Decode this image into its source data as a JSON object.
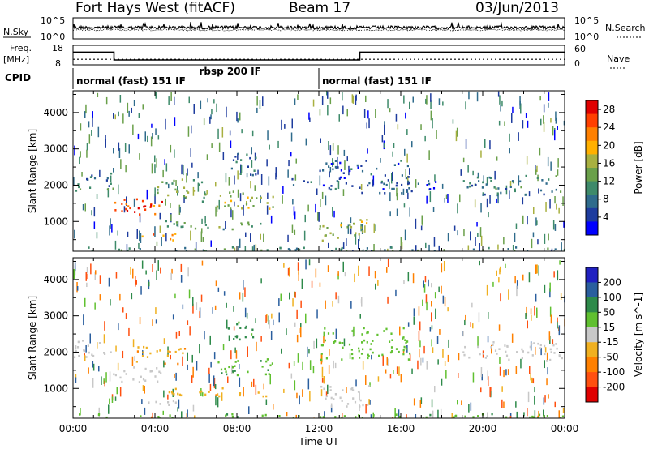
{
  "header": {
    "title": "Fort Hays West (fitACF)",
    "beam": "Beam 17",
    "date": "03/Jun/2013"
  },
  "top_strip": {
    "nsky_label": "N.Sky",
    "nsky_ticks": [
      "10^5",
      "10^0"
    ],
    "nsearch_label": "N.Search",
    "nsearch_ticks": [
      "10^5",
      "10^0"
    ],
    "freq_label_1": "Freq.",
    "freq_label_2": "[MHz]",
    "freq_ticks": [
      "18",
      "8"
    ],
    "nave_label": "Nave",
    "nave_ticks": [
      "60",
      "0"
    ],
    "cpid_label": "CPID",
    "cpid_segments": [
      {
        "label": "normal (fast) 151 IF",
        "start_hour": 0,
        "end_hour": 6
      },
      {
        "label": "rbsp 200 IF",
        "start_hour": 6,
        "end_hour": 12
      },
      {
        "label": "normal (fast) 151 IF",
        "start_hour": 12,
        "end_hour": 24
      }
    ]
  },
  "chart_data": [
    {
      "type": "line",
      "panel": "frequency and nave",
      "frequency_mhz": {
        "ylim": [
          8,
          18
        ],
        "x_hours": [
          0,
          2,
          2,
          14,
          14,
          24
        ],
        "y": [
          14.5,
          14.5,
          10.5,
          10.5,
          14.5,
          14.5
        ]
      },
      "nave": {
        "ylim": [
          0,
          60
        ],
        "x_hours": [
          0,
          24
        ],
        "y": [
          17,
          17
        ]
      }
    },
    {
      "type": "heatmap",
      "title": "Power",
      "xlabel": "Time UT",
      "ylabel": "Slant Range [km]",
      "xlim": [
        0,
        24
      ],
      "ylim": [
        180,
        4600
      ],
      "x_ticks": [
        "00:00",
        "04:00",
        "08:00",
        "12:00",
        "16:00",
        "20:00",
        "00:00"
      ],
      "y_ticks": [
        1000,
        2000,
        3000,
        4000
      ],
      "colorbar": {
        "label": "Power [dB]",
        "ticks": [
          4,
          8,
          12,
          16,
          20,
          24,
          28
        ],
        "range": [
          0,
          30
        ],
        "colors": [
          "#0000ff",
          "#1e3c9e",
          "#2f6b8c",
          "#3e8a6a",
          "#6aa04a",
          "#a8b040",
          "#ffb000",
          "#ff8000",
          "#ff4000",
          "#e00000"
        ]
      },
      "regions": [
        {
          "t0": 0,
          "t1": 2,
          "r0": 1850,
          "r1": 2350,
          "v": 9
        },
        {
          "t0": 1.8,
          "t1": 4.5,
          "r0": 1200,
          "r1": 1650,
          "v": 24
        },
        {
          "t0": 2.5,
          "t1": 4.0,
          "r0": 1350,
          "r1": 1550,
          "v": 28
        },
        {
          "t0": 4.0,
          "t1": 6.5,
          "r0": 1550,
          "r1": 2200,
          "v": 14
        },
        {
          "t0": 3.0,
          "t1": 5.0,
          "r0": 500,
          "r1": 700,
          "v": 22
        },
        {
          "t0": 4.5,
          "t1": 9.5,
          "r0": 800,
          "r1": 1050,
          "v": 12
        },
        {
          "t0": 7.0,
          "t1": 10.0,
          "r0": 1350,
          "r1": 1850,
          "v": 17
        },
        {
          "t0": 7.5,
          "t1": 9.0,
          "r0": 2300,
          "r1": 2900,
          "v": 7
        },
        {
          "t0": 10.5,
          "t1": 11.6,
          "r0": 1900,
          "r1": 2200,
          "v": 6
        },
        {
          "t0": 12.0,
          "t1": 14.5,
          "r0": 500,
          "r1": 1100,
          "v": 16
        },
        {
          "t0": 12.0,
          "t1": 16.5,
          "r0": 1800,
          "r1": 2700,
          "v": 6
        },
        {
          "t0": 16.5,
          "t1": 18.5,
          "r0": 1900,
          "r1": 2150,
          "v": 5
        },
        {
          "t0": 19.0,
          "t1": 24,
          "r0": 1750,
          "r1": 2300,
          "v": 9
        },
        {
          "t0": 0,
          "t1": 24,
          "r0": 180,
          "r1": 320,
          "v": 10
        }
      ]
    },
    {
      "type": "heatmap",
      "title": "Velocity",
      "xlabel": "Time UT",
      "ylabel": "Slant Range [km]",
      "xlim": [
        0,
        24
      ],
      "ylim": [
        180,
        4600
      ],
      "x_ticks": [
        "00:00",
        "04:00",
        "08:00",
        "12:00",
        "16:00",
        "20:00",
        "00:00"
      ],
      "y_ticks": [
        1000,
        2000,
        3000,
        4000
      ],
      "colorbar": {
        "label": "Velocity [m s^-1]",
        "ticks": [
          200,
          100,
          50,
          15,
          -15,
          -50,
          -100,
          -200
        ],
        "colors": [
          "#2020c0",
          "#2a5e9e",
          "#2e8a4a",
          "#60c030",
          "#c8c8c8",
          "#f0b020",
          "#ff8000",
          "#ff5010",
          "#e00000"
        ]
      },
      "regions": [
        {
          "t0": 0,
          "t1": 2,
          "r0": 1850,
          "r1": 2350,
          "v": 0
        },
        {
          "t0": 1.8,
          "t1": 4.5,
          "r0": 1200,
          "r1": 1650,
          "v": 0
        },
        {
          "t0": 3.0,
          "t1": 5.5,
          "r0": 1700,
          "r1": 2200,
          "v": -40
        },
        {
          "t0": 3.0,
          "t1": 5.0,
          "r0": 500,
          "r1": 700,
          "v": 0
        },
        {
          "t0": 4.5,
          "t1": 9.5,
          "r0": 800,
          "r1": 1050,
          "v": -40
        },
        {
          "t0": 7.0,
          "t1": 10.0,
          "r0": 1350,
          "r1": 1850,
          "v": 45
        },
        {
          "t0": 7.5,
          "t1": 9.0,
          "r0": 2300,
          "r1": 2900,
          "v": 60
        },
        {
          "t0": 12.0,
          "t1": 14.5,
          "r0": 500,
          "r1": 1100,
          "v": 0
        },
        {
          "t0": 12.0,
          "t1": 16.5,
          "r0": 1800,
          "r1": 2700,
          "v": 30
        },
        {
          "t0": 19.0,
          "t1": 24,
          "r0": 1750,
          "r1": 2300,
          "v": 0
        },
        {
          "t0": 0,
          "t1": 24,
          "r0": 180,
          "r1": 320,
          "v": 40
        }
      ]
    }
  ]
}
